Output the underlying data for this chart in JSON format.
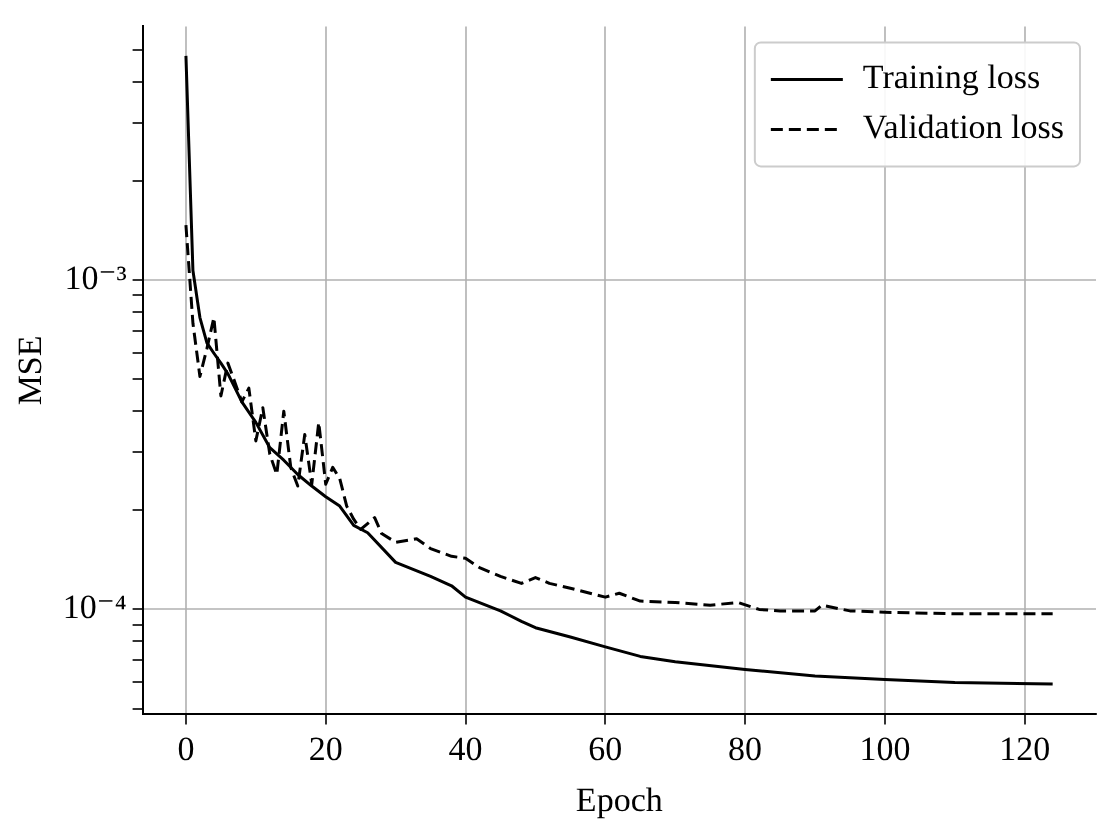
{
  "chart_data": {
    "type": "line",
    "xlabel": "Epoch",
    "ylabel": "MSE",
    "log": "y",
    "grid": true,
    "legend": "top right",
    "xlim": [
      -6.2,
      130.2
    ],
    "xticks": [
      0,
      20,
      40,
      60,
      80,
      100,
      120
    ],
    "ylim": [
      4.8e-05,
      0.0059
    ],
    "yticks": [
      {
        "value": 5e-05,
        "label": null
      },
      {
        "value": 6e-05,
        "label": null
      },
      {
        "value": 7e-05,
        "label": null
      },
      {
        "value": 8e-05,
        "label": null
      },
      {
        "value": 9e-05,
        "label": null
      },
      {
        "value": 0.0001,
        "label": "10⁻⁴"
      },
      {
        "value": 0.0002,
        "label": null
      },
      {
        "value": 0.0003,
        "label": null
      },
      {
        "value": 0.0004,
        "label": null
      },
      {
        "value": 0.0005,
        "label": null
      },
      {
        "value": 0.0006,
        "label": null
      },
      {
        "value": 0.0007,
        "label": null
      },
      {
        "value": 0.0008,
        "label": null
      },
      {
        "value": 0.0009,
        "label": null
      },
      {
        "value": 0.001,
        "label": "10⁻³"
      },
      {
        "value": 0.002,
        "label": null
      },
      {
        "value": 0.003,
        "label": null
      },
      {
        "value": 0.004,
        "label": null
      },
      {
        "value": 0.005,
        "label": null
      }
    ],
    "series": [
      {
        "name": "Training loss",
        "color": "#000000",
        "line_style": "solid",
        "x": [
          0,
          1,
          2,
          3,
          4,
          5,
          6,
          8,
          10,
          12,
          14,
          16,
          18,
          20,
          22,
          24,
          26,
          30,
          35,
          38,
          40,
          45,
          48,
          50,
          55,
          60,
          65,
          70,
          80,
          90,
          100,
          110,
          124
        ],
        "values": [
          0.0048,
          0.00107,
          0.00077,
          0.000645,
          0.0006,
          0.00056,
          0.00052,
          0.000427,
          0.00037,
          0.00031,
          0.000284,
          0.000257,
          0.000237,
          0.00022,
          0.000206,
          0.00018,
          0.000171,
          0.000139,
          0.000126,
          0.000118,
          0.000109,
          9.9e-05,
          9.2e-05,
          8.8e-05,
          8.25e-05,
          7.7e-05,
          7.2e-05,
          6.94e-05,
          6.57e-05,
          6.28e-05,
          6.13e-05,
          6e-05,
          5.94e-05
        ]
      },
      {
        "name": "Validation loss",
        "color": "#000000",
        "line_style": "dashed",
        "x": [
          0,
          1,
          2,
          3,
          4,
          5,
          6,
          7,
          8,
          9,
          10,
          11,
          12,
          13,
          14,
          15,
          16,
          17,
          18,
          19,
          20,
          21,
          22,
          23,
          24,
          25,
          27,
          28,
          30,
          33,
          35,
          38,
          40,
          42,
          45,
          48,
          50,
          52,
          55,
          60,
          62,
          65,
          70,
          75,
          79,
          82,
          85,
          90,
          91,
          95,
          100,
          110,
          124
        ],
        "values": [
          0.00147,
          0.00074,
          0.00051,
          0.00062,
          0.00077,
          0.000445,
          0.00056,
          0.00049,
          0.000427,
          0.00047,
          0.000325,
          0.00041,
          0.000296,
          0.000257,
          0.0004,
          0.00027,
          0.000237,
          0.00034,
          0.00024,
          0.00037,
          0.00024,
          0.00027,
          0.00025,
          0.000206,
          0.000188,
          0.000175,
          0.00019,
          0.00017,
          0.00016,
          0.000164,
          0.000153,
          0.000145,
          0.000143,
          0.000134,
          0.000126,
          0.00012,
          0.000125,
          0.00012,
          0.000116,
          0.000109,
          0.000112,
          0.000106,
          0.000105,
          0.000103,
          0.000105,
          0.0001,
          9.9e-05,
          9.9e-05,
          0.000103,
          9.9e-05,
          9.8e-05,
          9.7e-05,
          9.7e-05
        ]
      }
    ]
  }
}
